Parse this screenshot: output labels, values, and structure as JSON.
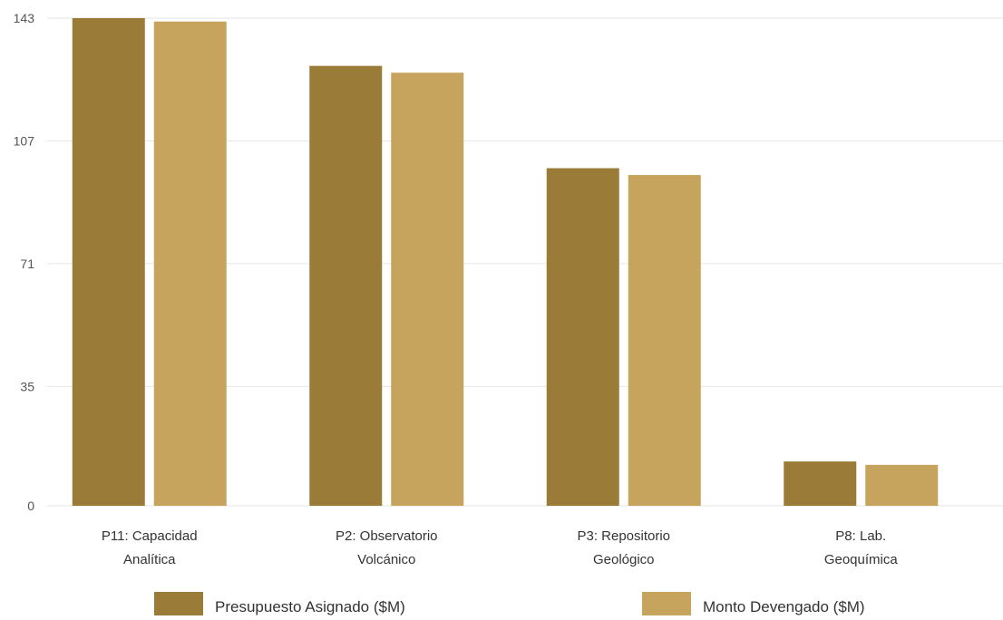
{
  "chart_data": {
    "type": "bar",
    "categories": [
      [
        "P11: Capacidad",
        "Analítica"
      ],
      [
        "P2: Observatorio",
        "Volcánico"
      ],
      [
        "P3: Repositorio",
        "Geológico"
      ],
      [
        "P8: Lab.",
        "Geoquímica"
      ]
    ],
    "series": [
      {
        "name": "Presupuesto Asignado ($M)",
        "color": "#9a7b38",
        "values": [
          143,
          129,
          99,
          13
        ]
      },
      {
        "name": "Monto Devengado ($M)",
        "color": "#c6a45d",
        "values": [
          142,
          127,
          97,
          12
        ]
      }
    ],
    "yticks": [
      0,
      35,
      71,
      107,
      143
    ],
    "ylim": [
      0,
      143
    ],
    "grid": true,
    "legend_position": "bottom"
  }
}
